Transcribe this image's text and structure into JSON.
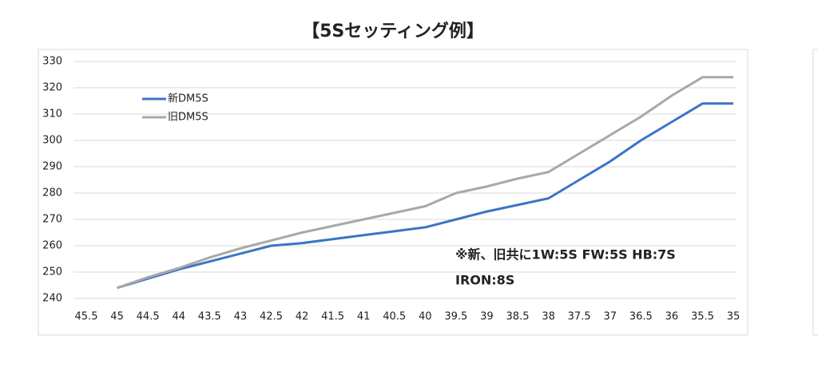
{
  "chart_data": {
    "type": "line",
    "title": "【5Sセッティング例】",
    "x": [
      45,
      44.5,
      44,
      43.5,
      43,
      42.5,
      42,
      41.5,
      41,
      40.5,
      40,
      39.5,
      39,
      38.5,
      38,
      37.5,
      37,
      36.5,
      36,
      35.5,
      35
    ],
    "xlim": [
      45.5,
      35
    ],
    "xticks": [
      45.5,
      45,
      44.5,
      44,
      43.5,
      43,
      42.5,
      42,
      41.5,
      41,
      40.5,
      40,
      39.5,
      39,
      38.5,
      38,
      37.5,
      37,
      36.5,
      36,
      35.5,
      35
    ],
    "ylim": [
      240,
      330
    ],
    "yticks": [
      240,
      250,
      260,
      270,
      280,
      290,
      300,
      310,
      320,
      330
    ],
    "grid": true,
    "legend": "upper left",
    "series": [
      {
        "name": "新DM5S",
        "color": "#3a75c4",
        "values": [
          244,
          247.5,
          251,
          254,
          257,
          260,
          261,
          262.5,
          264,
          265.5,
          267,
          270,
          273,
          275.5,
          278,
          285,
          292,
          300,
          307,
          314,
          314
        ]
      },
      {
        "name": "旧DM5S",
        "color": "#a8a8a8",
        "values": [
          244,
          248,
          251.5,
          255.5,
          259,
          262,
          265,
          267.5,
          270,
          272.5,
          275,
          280,
          282.5,
          285.5,
          288,
          295,
          302,
          309,
          317,
          324,
          324
        ]
      }
    ],
    "annotations": [
      "※新、旧共に1W:5S FW:5S HB:7S",
      "IRON:8S"
    ]
  }
}
